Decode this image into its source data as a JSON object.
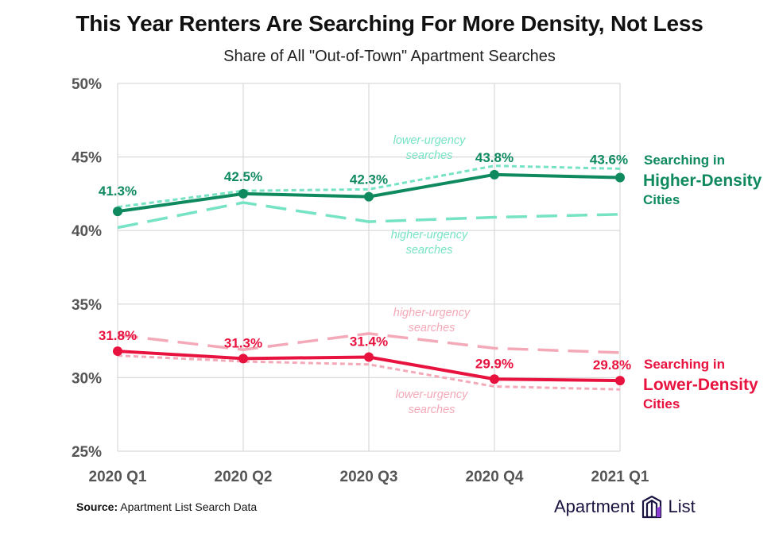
{
  "title": "This Year Renters Are Searching For More Density, Not Less",
  "subtitle": "Share of All \"Out-of-Town\" Apartment Searches",
  "source_label": "Source:",
  "source_text": "Apartment List Search Data",
  "brand": {
    "left": "Apartment",
    "right": "List"
  },
  "colors": {
    "high_dark": "#0f8a5f",
    "high_light": "#76e3c4",
    "low_dark": "#e8123f",
    "low_light": "#f4a9b8",
    "grid": "#d9d9d9",
    "axis_text": "#555555"
  },
  "chart_data": {
    "type": "line",
    "categories": [
      "2020 Q1",
      "2020 Q2",
      "2020 Q3",
      "2020 Q4",
      "2021 Q1"
    ],
    "ylim": [
      25,
      50
    ],
    "yticks": [
      25,
      30,
      35,
      40,
      45,
      50
    ],
    "ytick_labels": [
      "25%",
      "30%",
      "35%",
      "40%",
      "45%",
      "50%"
    ],
    "series": [
      {
        "name": "Higher-Density Cities",
        "style": "solid",
        "color_key": "high_dark",
        "values": [
          41.3,
          42.5,
          42.3,
          43.8,
          43.6
        ],
        "labels": [
          "41.3%",
          "42.5%",
          "42.3%",
          "43.8%",
          "43.6%"
        ]
      },
      {
        "name": "Higher-Density lower-urgency searches",
        "style": "dotted",
        "color_key": "high_light",
        "values": [
          41.6,
          42.7,
          42.8,
          44.4,
          44.2
        ]
      },
      {
        "name": "Higher-Density higher-urgency searches",
        "style": "dashed",
        "color_key": "high_light",
        "values": [
          40.2,
          41.9,
          40.6,
          40.9,
          41.1
        ]
      },
      {
        "name": "Lower-Density Cities",
        "style": "solid",
        "color_key": "low_dark",
        "values": [
          31.8,
          31.3,
          31.4,
          29.9,
          29.8
        ],
        "labels": [
          "31.8%",
          "31.3%",
          "31.4%",
          "29.9%",
          "29.8%"
        ]
      },
      {
        "name": "Lower-Density higher-urgency searches",
        "style": "dashed",
        "color_key": "low_light",
        "values": [
          32.9,
          31.9,
          33.0,
          32.0,
          31.7
        ]
      },
      {
        "name": "Lower-Density lower-urgency searches",
        "style": "dotted",
        "color_key": "low_light",
        "values": [
          31.5,
          31.1,
          30.9,
          29.4,
          29.2
        ]
      }
    ],
    "annotations": {
      "high_lower_urgency": [
        "lower-urgency",
        "searches"
      ],
      "high_higher_urgency": [
        "higher-urgency",
        "searches"
      ],
      "low_higher_urgency": [
        "higher-urgency",
        "searches"
      ],
      "low_lower_urgency": [
        "lower-urgency",
        "searches"
      ],
      "high_label": [
        "Searching in",
        "Higher-Density",
        "Cities"
      ],
      "low_label": [
        "Searching in",
        "Lower-Density",
        "Cities"
      ]
    }
  }
}
